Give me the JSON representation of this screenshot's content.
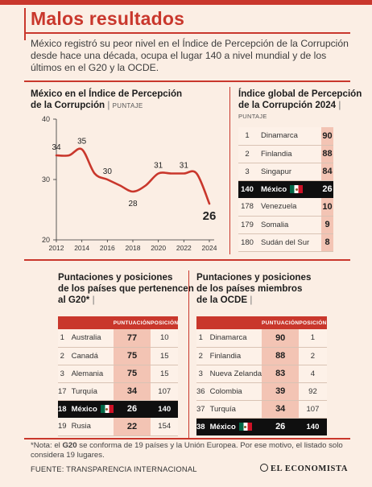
{
  "title": "Malos resultados",
  "lede": "México registró su peor nivel en el Índice de Percepción de la Corrupción desde hace una década, ocupa el lugar 140 a nivel mundial y de los últimos en el G20 y la OCDE.",
  "line_section": {
    "title_line1": "México en el Índice de Percepción",
    "title_line2": "de la Corrupción",
    "unit": "PUNTAJE"
  },
  "global_section": {
    "title_line1": "Índice global de Percepción",
    "title_line2": "de la Corrupción 2024",
    "unit": "PUNTAJE"
  },
  "g20_section": {
    "title_line1": "Puntaciones y posiciones",
    "title_line2": "de los países que pertenencen",
    "title_line3": "al G20*"
  },
  "ocde_section": {
    "title_line1": "Puntaciones y posiciones",
    "title_line2": "de los países miembros",
    "title_line3": "de la OCDE"
  },
  "col_headers": {
    "score": "PUNTUACIÓN",
    "position": "POSICIÓN"
  },
  "note_prefix": "*Nota: el ",
  "note_bold": "G20",
  "note_rest": " se conforma de 19 países y la Unión Europea. Por ese motivo, el listado solo considera 19 lugares.",
  "source": "FUENTE: TRANSPARENCIA INTERNACIONAL",
  "brand": "EL ECONOMISTA",
  "colors": {
    "accent": "#c9372c",
    "score_bg": "#f3c4b4",
    "background": "#fbeee4",
    "highlight": "#0f0f0f"
  },
  "chart_data": [
    {
      "type": "line",
      "title": "México en el Índice de Percepción de la Corrupción",
      "ylabel": "PUNTAJE",
      "x": [
        2012,
        2013,
        2014,
        2015,
        2016,
        2017,
        2018,
        2019,
        2020,
        2021,
        2022,
        2023,
        2024
      ],
      "values": [
        34,
        34,
        35,
        31,
        30,
        29,
        28,
        29,
        31,
        31,
        31,
        31,
        26
      ],
      "labeled_points": [
        {
          "x": 2012,
          "label": "34"
        },
        {
          "x": 2014,
          "label": "35"
        },
        {
          "x": 2016,
          "label": "30"
        },
        {
          "x": 2018,
          "label": "28"
        },
        {
          "x": 2020,
          "label": "31"
        },
        {
          "x": 2022,
          "label": "31"
        },
        {
          "x": 2024,
          "label": "26"
        }
      ],
      "xticks": [
        "2012",
        "2014",
        "2016",
        "2018",
        "2020",
        "2022",
        "2024"
      ],
      "yticks": [
        "20",
        "30",
        "40"
      ],
      "ylim": [
        20,
        40
      ],
      "grid": false
    },
    {
      "type": "table",
      "title": "Índice global de Percepción de la Corrupción 2024",
      "rows": [
        {
          "pos": "1",
          "country": "Dinamarca",
          "score": "90"
        },
        {
          "pos": "2",
          "country": "Finlandia",
          "score": "88"
        },
        {
          "pos": "3",
          "country": "Singapur",
          "score": "84"
        },
        {
          "pos": "140",
          "country": "México",
          "score": "26",
          "highlight": true
        },
        {
          "pos": "178",
          "country": "Venezuela",
          "score": "10"
        },
        {
          "pos": "179",
          "country": "Somalia",
          "score": "9"
        },
        {
          "pos": "180",
          "country": "Sudán del Sur",
          "score": "8"
        }
      ]
    },
    {
      "type": "table",
      "title": "Puntaciones y posiciones de los países que pertenencen al G20*",
      "rows": [
        {
          "pos": "1",
          "country": "Australia",
          "score": "77",
          "position": "10"
        },
        {
          "pos": "2",
          "country": "Canadá",
          "score": "75",
          "position": "15"
        },
        {
          "pos": "3",
          "country": "Alemania",
          "score": "75",
          "position": "15"
        },
        {
          "pos": "17",
          "country": "Turquía",
          "score": "34",
          "position": "107"
        },
        {
          "pos": "18",
          "country": "México",
          "score": "26",
          "position": "140",
          "highlight": true
        },
        {
          "pos": "19",
          "country": "Rusia",
          "score": "22",
          "position": "154"
        }
      ]
    },
    {
      "type": "table",
      "title": "Puntaciones y posiciones de los países miembros de la OCDE",
      "rows": [
        {
          "pos": "1",
          "country": "Dinamarca",
          "score": "90",
          "position": "1"
        },
        {
          "pos": "2",
          "country": "Finlandia",
          "score": "88",
          "position": "2"
        },
        {
          "pos": "3",
          "country": "Nueva Zelanda",
          "score": "83",
          "position": "4"
        },
        {
          "pos": "36",
          "country": "Colombia",
          "score": "39",
          "position": "92"
        },
        {
          "pos": "37",
          "country": "Turquía",
          "score": "34",
          "position": "107"
        },
        {
          "pos": "38",
          "country": "México",
          "score": "26",
          "position": "140",
          "highlight": true
        }
      ]
    }
  ]
}
